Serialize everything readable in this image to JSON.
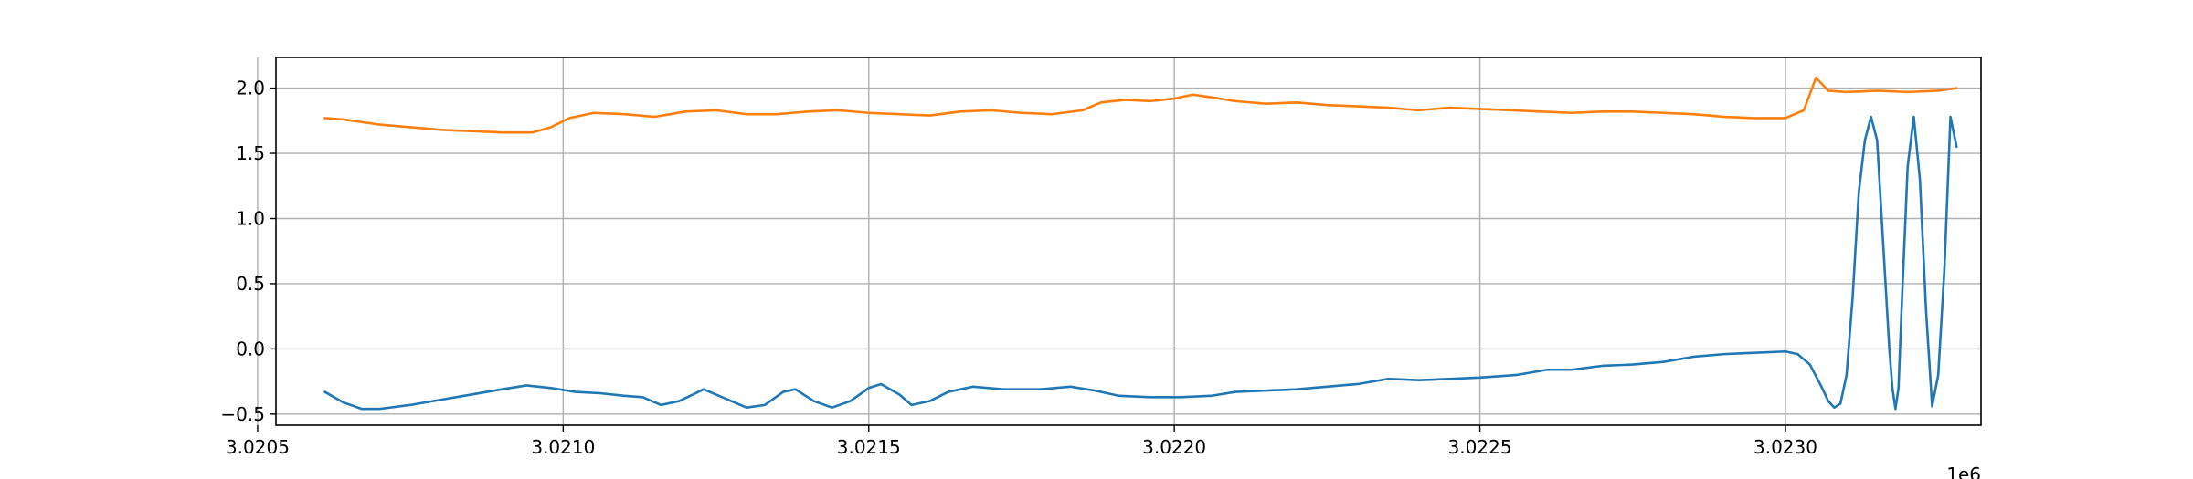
{
  "chart_data": {
    "type": "line",
    "title": "",
    "xlabel": "",
    "ylabel": "",
    "x_offset_label": "1e6",
    "xlim": [
      3.02053,
      3.02332
    ],
    "ylim": [
      -0.585,
      2.235
    ],
    "grid": true,
    "legend": "none",
    "x_ticks": [
      3.0205,
      3.021,
      3.0215,
      3.022,
      3.0225,
      3.023
    ],
    "x_tick_labels": [
      "3.0205",
      "3.0210",
      "3.0215",
      "3.0220",
      "3.0225",
      "3.0230"
    ],
    "y_ticks": [
      -0.5,
      0.0,
      0.5,
      1.0,
      1.5,
      2.0
    ],
    "y_tick_labels": [
      "−0.5",
      "0.0",
      "0.5",
      "1.0",
      "1.5",
      "2.0"
    ],
    "series": [
      {
        "color": "#1f77b4",
        "points": [
          [
            3.02061,
            -0.33
          ],
          [
            3.02064,
            -0.41
          ],
          [
            3.02067,
            -0.46
          ],
          [
            3.0207,
            -0.46
          ],
          [
            3.02075,
            -0.43
          ],
          [
            3.0208,
            -0.39
          ],
          [
            3.02085,
            -0.35
          ],
          [
            3.0209,
            -0.31
          ],
          [
            3.02094,
            -0.28
          ],
          [
            3.02098,
            -0.3
          ],
          [
            3.02102,
            -0.33
          ],
          [
            3.02106,
            -0.34
          ],
          [
            3.0211,
            -0.36
          ],
          [
            3.02113,
            -0.37
          ],
          [
            3.02116,
            -0.43
          ],
          [
            3.02119,
            -0.4
          ],
          [
            3.02123,
            -0.31
          ],
          [
            3.02126,
            -0.37
          ],
          [
            3.0213,
            -0.45
          ],
          [
            3.02133,
            -0.43
          ],
          [
            3.02136,
            -0.33
          ],
          [
            3.02138,
            -0.31
          ],
          [
            3.02141,
            -0.4
          ],
          [
            3.02144,
            -0.45
          ],
          [
            3.02147,
            -0.4
          ],
          [
            3.0215,
            -0.3
          ],
          [
            3.02152,
            -0.27
          ],
          [
            3.02155,
            -0.35
          ],
          [
            3.02157,
            -0.43
          ],
          [
            3.0216,
            -0.4
          ],
          [
            3.02163,
            -0.33
          ],
          [
            3.02167,
            -0.29
          ],
          [
            3.02172,
            -0.31
          ],
          [
            3.02178,
            -0.31
          ],
          [
            3.02183,
            -0.29
          ],
          [
            3.02187,
            -0.32
          ],
          [
            3.02191,
            -0.36
          ],
          [
            3.02196,
            -0.37
          ],
          [
            3.02201,
            -0.37
          ],
          [
            3.02206,
            -0.36
          ],
          [
            3.0221,
            -0.33
          ],
          [
            3.02215,
            -0.32
          ],
          [
            3.0222,
            -0.31
          ],
          [
            3.0223,
            -0.27
          ],
          [
            3.02235,
            -0.23
          ],
          [
            3.0224,
            -0.24
          ],
          [
            3.02245,
            -0.23
          ],
          [
            3.0225,
            -0.22
          ],
          [
            3.02256,
            -0.2
          ],
          [
            3.02261,
            -0.16
          ],
          [
            3.02265,
            -0.16
          ],
          [
            3.0227,
            -0.13
          ],
          [
            3.02275,
            -0.12
          ],
          [
            3.0228,
            -0.1
          ],
          [
            3.02285,
            -0.06
          ],
          [
            3.0229,
            -0.04
          ],
          [
            3.02295,
            -0.03
          ],
          [
            3.023,
            -0.02
          ],
          [
            3.02302,
            -0.04
          ],
          [
            3.02304,
            -0.12
          ],
          [
            3.02306,
            -0.3
          ],
          [
            3.02307,
            -0.4
          ],
          [
            3.02308,
            -0.45
          ],
          [
            3.02309,
            -0.42
          ],
          [
            3.0231,
            -0.2
          ],
          [
            3.02311,
            0.4
          ],
          [
            3.02312,
            1.2
          ],
          [
            3.02313,
            1.6
          ],
          [
            3.02314,
            1.78
          ],
          [
            3.02315,
            1.6
          ],
          [
            3.02316,
            0.8
          ],
          [
            3.02317,
            0.0
          ],
          [
            3.023175,
            -0.3
          ],
          [
            3.02318,
            -0.46
          ],
          [
            3.023185,
            -0.3
          ],
          [
            3.02319,
            0.3
          ],
          [
            3.0232,
            1.4
          ],
          [
            3.02321,
            1.78
          ],
          [
            3.02322,
            1.3
          ],
          [
            3.02323,
            0.3
          ],
          [
            3.02324,
            -0.44
          ],
          [
            3.02325,
            -0.2
          ],
          [
            3.02326,
            0.6
          ],
          [
            3.02327,
            1.78
          ],
          [
            3.02328,
            1.55
          ]
        ]
      },
      {
        "color": "#ff7f0e",
        "points": [
          [
            3.02061,
            1.77
          ],
          [
            3.02064,
            1.76
          ],
          [
            3.02067,
            1.74
          ],
          [
            3.0207,
            1.72
          ],
          [
            3.02075,
            1.7
          ],
          [
            3.0208,
            1.68
          ],
          [
            3.02085,
            1.67
          ],
          [
            3.0209,
            1.66
          ],
          [
            3.02095,
            1.66
          ],
          [
            3.02098,
            1.7
          ],
          [
            3.02101,
            1.77
          ],
          [
            3.02105,
            1.81
          ],
          [
            3.0211,
            1.8
          ],
          [
            3.02115,
            1.78
          ],
          [
            3.0212,
            1.82
          ],
          [
            3.02125,
            1.83
          ],
          [
            3.0213,
            1.8
          ],
          [
            3.02135,
            1.8
          ],
          [
            3.0214,
            1.82
          ],
          [
            3.02145,
            1.83
          ],
          [
            3.0215,
            1.81
          ],
          [
            3.02155,
            1.8
          ],
          [
            3.0216,
            1.79
          ],
          [
            3.02165,
            1.82
          ],
          [
            3.0217,
            1.83
          ],
          [
            3.02175,
            1.81
          ],
          [
            3.0218,
            1.8
          ],
          [
            3.02185,
            1.83
          ],
          [
            3.02188,
            1.89
          ],
          [
            3.02192,
            1.91
          ],
          [
            3.02196,
            1.9
          ],
          [
            3.022,
            1.92
          ],
          [
            3.02203,
            1.95
          ],
          [
            3.02206,
            1.93
          ],
          [
            3.0221,
            1.9
          ],
          [
            3.02215,
            1.88
          ],
          [
            3.0222,
            1.89
          ],
          [
            3.02225,
            1.87
          ],
          [
            3.0223,
            1.86
          ],
          [
            3.02235,
            1.85
          ],
          [
            3.0224,
            1.83
          ],
          [
            3.02245,
            1.85
          ],
          [
            3.0225,
            1.84
          ],
          [
            3.02255,
            1.83
          ],
          [
            3.0226,
            1.82
          ],
          [
            3.02265,
            1.81
          ],
          [
            3.0227,
            1.82
          ],
          [
            3.02275,
            1.82
          ],
          [
            3.0228,
            1.81
          ],
          [
            3.02285,
            1.8
          ],
          [
            3.0229,
            1.78
          ],
          [
            3.02295,
            1.77
          ],
          [
            3.023,
            1.77
          ],
          [
            3.02303,
            1.83
          ],
          [
            3.02305,
            2.08
          ],
          [
            3.02307,
            1.98
          ],
          [
            3.0231,
            1.97
          ],
          [
            3.02315,
            1.98
          ],
          [
            3.0232,
            1.97
          ],
          [
            3.02325,
            1.98
          ],
          [
            3.02328,
            2.0
          ]
        ]
      }
    ]
  }
}
